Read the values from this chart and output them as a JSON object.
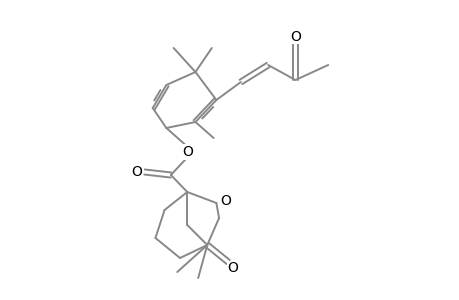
{
  "line_color": "#888888",
  "text_color": "#000000",
  "bg_color": "#ffffff",
  "lw": 1.4,
  "figsize": [
    4.6,
    3.0
  ],
  "dpi": 100,
  "xlim": [
    0.3,
    4.9
  ],
  "ylim": [
    0.0,
    3.3
  ],
  "font_size": 10
}
